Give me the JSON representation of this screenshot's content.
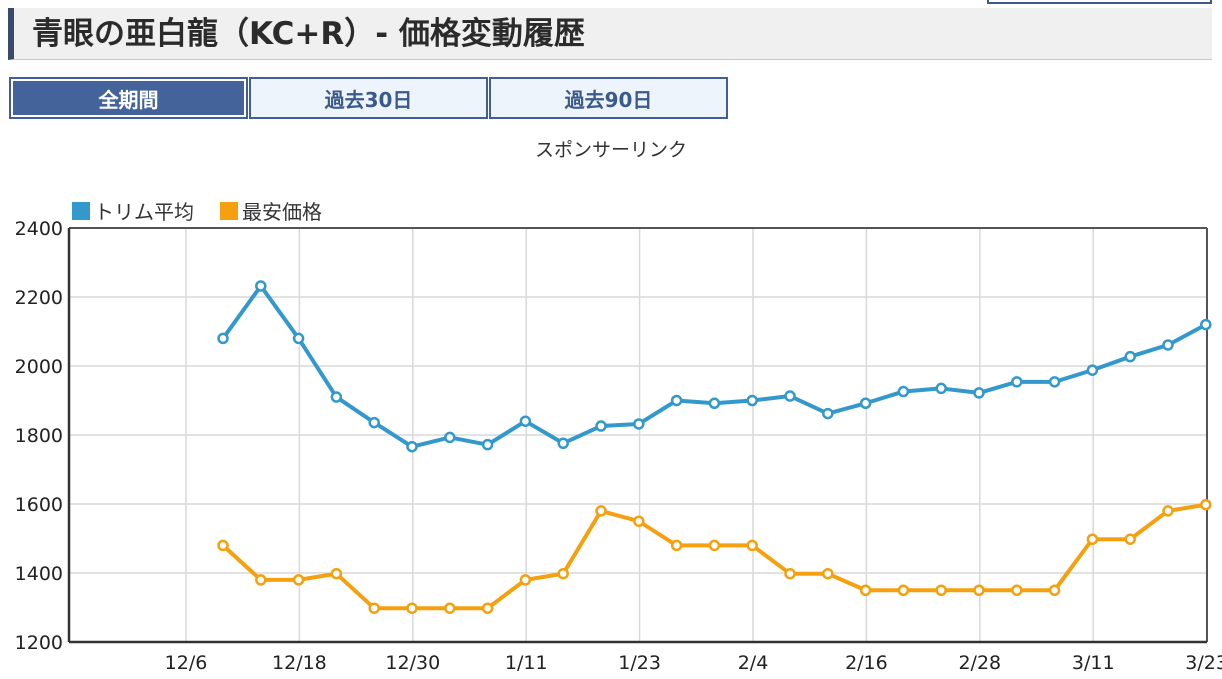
{
  "page": {
    "title": "青眼の亜白龍（KC+R）- 価格変動履歴",
    "sponsor": "スポンサーリンク"
  },
  "tabs": [
    {
      "label": "全期間",
      "active": true
    },
    {
      "label": "過去30日",
      "active": false
    },
    {
      "label": "過去90日",
      "active": false
    }
  ],
  "colors": {
    "accent": "#44639b",
    "series_trim": "#3399cc",
    "series_min": "#f5a00f"
  },
  "chart_data": {
    "type": "line",
    "ylim": [
      1200,
      2400
    ],
    "yticks": [
      1200,
      1400,
      1600,
      1800,
      2000,
      2200,
      2400
    ],
    "grid": true,
    "legend_position": "top-left",
    "xtick_labels": [
      "12/6",
      "12/18",
      "12/30",
      "1/11",
      "1/23",
      "2/4",
      "2/16",
      "2/28",
      "3/11",
      "3/23"
    ],
    "series": [
      {
        "name": "トリム平均",
        "color": "#3399cc",
        "values": [
          2080,
          2232,
          2080,
          1910,
          1836,
          1766,
          1793,
          1772,
          1840,
          1776,
          1826,
          1832,
          1900,
          1892,
          1900,
          1913,
          1862,
          1892,
          1926,
          1935,
          1922,
          1954,
          1954,
          1988,
          2027,
          2061,
          2120
        ]
      },
      {
        "name": "最安価格",
        "color": "#f5a00f",
        "values": [
          1480,
          1380,
          1380,
          1398,
          1298,
          1298,
          1298,
          1298,
          1380,
          1398,
          1580,
          1550,
          1480,
          1480,
          1480,
          1398,
          1398,
          1350,
          1350,
          1350,
          1350,
          1350,
          1350,
          1498,
          1498,
          1580,
          1598
        ]
      }
    ]
  }
}
